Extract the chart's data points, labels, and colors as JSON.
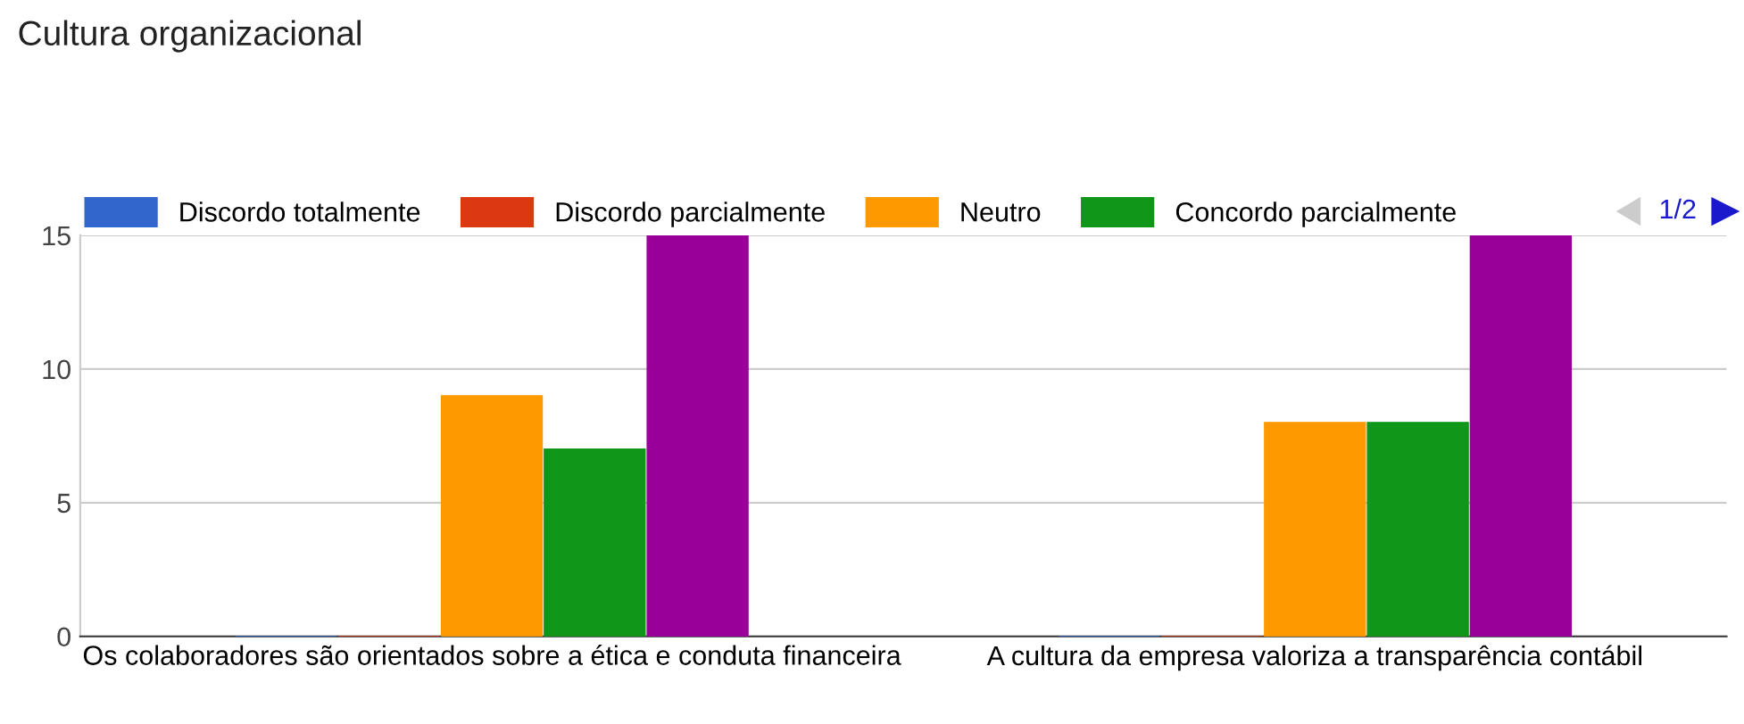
{
  "chart_data": {
    "type": "bar",
    "title": "Cultura organizacional",
    "categories": [
      "Os colaboradores são orientados sobre a ética e conduta financeira",
      "A cultura da empresa valoriza a transparência contábil"
    ],
    "series": [
      {
        "name": "Discordo totalmente",
        "color": "#3366cc",
        "values": [
          0,
          0
        ]
      },
      {
        "name": "Discordo parcialmente",
        "color": "#dc3912",
        "values": [
          0,
          0
        ]
      },
      {
        "name": "Neutro",
        "color": "#ff9900",
        "values": [
          9,
          8
        ]
      },
      {
        "name": "Concordo parcialmente",
        "color": "#109618",
        "values": [
          7,
          8
        ]
      },
      {
        "color": "#990099",
        "values": [
          15,
          15
        ]
      }
    ],
    "ylim": [
      0,
      15
    ],
    "yticks": [
      0,
      5,
      10,
      15
    ],
    "grid": "y",
    "legend": "top",
    "annotations": [
      "1/2"
    ]
  }
}
